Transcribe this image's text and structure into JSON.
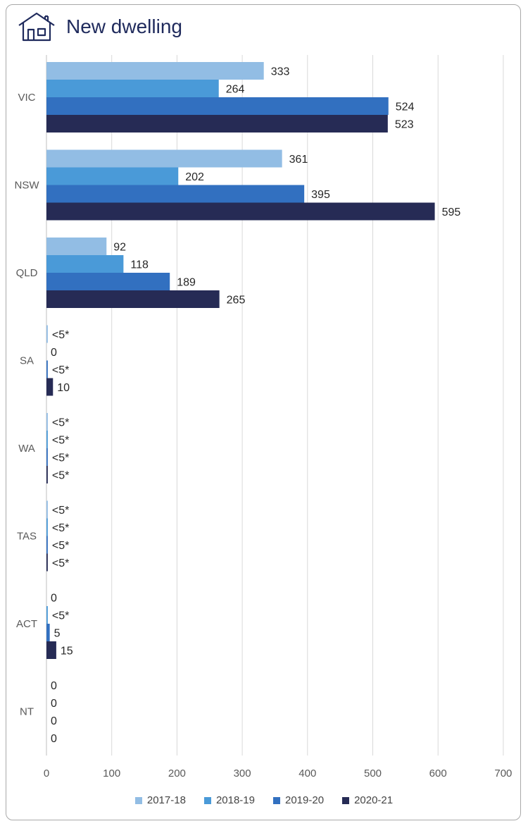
{
  "title": "New dwelling",
  "icon": "house-icon",
  "chart_data": {
    "type": "bar",
    "orientation": "horizontal",
    "title": "New dwelling",
    "xlabel": "",
    "ylabel": "",
    "xlim": [
      0,
      700
    ],
    "xticks": [
      0,
      100,
      200,
      300,
      400,
      500,
      600,
      700
    ],
    "grid": true,
    "legend_position": "bottom",
    "categories": [
      "VIC",
      "NSW",
      "QLD",
      "SA",
      "WA",
      "TAS",
      "ACT",
      "NT"
    ],
    "series": [
      {
        "name": "2017-18",
        "color": "#92bde4",
        "values": [
          333,
          361,
          92,
          2,
          2,
          2,
          0,
          0
        ],
        "labels": [
          "333",
          "361",
          "92",
          "<5*",
          "<5*",
          "<5*",
          "0",
          "0"
        ]
      },
      {
        "name": "2018-19",
        "color": "#4a9ad8",
        "values": [
          264,
          202,
          118,
          0,
          2,
          2,
          2,
          0
        ],
        "labels": [
          "264",
          "202",
          "118",
          "0",
          "<5*",
          "<5*",
          "<5*",
          "0"
        ]
      },
      {
        "name": "2019-20",
        "color": "#3270c0",
        "values": [
          524,
          395,
          189,
          2,
          2,
          2,
          5,
          0
        ],
        "labels": [
          "524",
          "395",
          "189",
          "<5*",
          "<5*",
          "<5*",
          "5",
          "0"
        ]
      },
      {
        "name": "2020-21",
        "color": "#262b55",
        "values": [
          523,
          595,
          265,
          10,
          2,
          2,
          15,
          0
        ],
        "labels": [
          "523",
          "595",
          "265",
          "10",
          "<5*",
          "<5*",
          "15",
          "0"
        ]
      }
    ]
  }
}
